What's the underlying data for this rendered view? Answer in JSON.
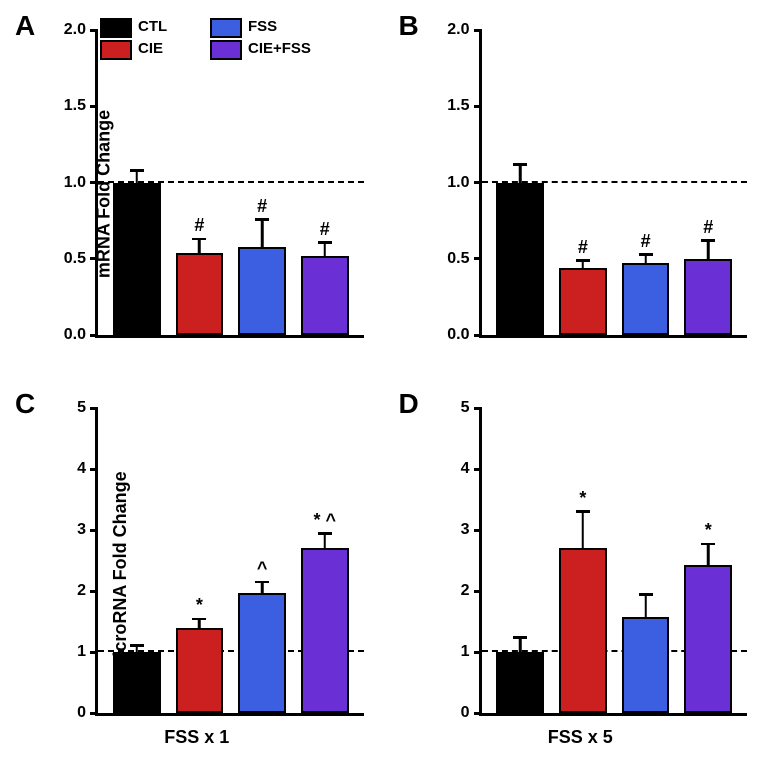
{
  "colors": {
    "CTL": "#000000",
    "CIE": "#cc1f1f",
    "FSS": "#3b5fe0",
    "CIEFSS": "#6b2fd6"
  },
  "legend": {
    "items": [
      {
        "key": "CTL",
        "label": "CTL"
      },
      {
        "key": "CIE",
        "label": "CIE"
      },
      {
        "key": "FSS",
        "label": "FSS"
      },
      {
        "key": "CIEFSS",
        "label": "CIE+FSS"
      }
    ]
  },
  "panels": {
    "A": {
      "label": "A",
      "ylabel": "mRNA Fold Change",
      "ylim": [
        0,
        2.0
      ],
      "yticks": [
        0.0,
        0.5,
        1.0,
        1.5,
        2.0
      ],
      "ytick_labels": [
        "0.0",
        "0.5",
        "1.0",
        "1.5",
        "2.0"
      ],
      "ref": 1.0,
      "bars": [
        {
          "key": "CTL",
          "value": 1.0,
          "err": 0.07,
          "annot": ""
        },
        {
          "key": "CIE",
          "value": 0.54,
          "err": 0.08,
          "annot": "#"
        },
        {
          "key": "FSS",
          "value": 0.58,
          "err": 0.17,
          "annot": "#"
        },
        {
          "key": "CIEFSS",
          "value": 0.52,
          "err": 0.08,
          "annot": "#"
        }
      ],
      "show_ylabel": true,
      "show_legend": true
    },
    "B": {
      "label": "B",
      "ylabel": "mRNA Fold Change",
      "ylim": [
        0,
        2.0
      ],
      "yticks": [
        0.0,
        0.5,
        1.0,
        1.5,
        2.0
      ],
      "ytick_labels": [
        "0.0",
        "0.5",
        "1.0",
        "1.5",
        "2.0"
      ],
      "ref": 1.0,
      "bars": [
        {
          "key": "CTL",
          "value": 1.0,
          "err": 0.11,
          "annot": ""
        },
        {
          "key": "CIE",
          "value": 0.44,
          "err": 0.04,
          "annot": "#"
        },
        {
          "key": "FSS",
          "value": 0.47,
          "err": 0.05,
          "annot": "#"
        },
        {
          "key": "CIEFSS",
          "value": 0.5,
          "err": 0.11,
          "annot": "#"
        }
      ],
      "show_ylabel": false,
      "show_legend": false
    },
    "C": {
      "label": "C",
      "ylabel": "microRNA Fold Change",
      "ylim": [
        0,
        5
      ],
      "yticks": [
        0,
        1,
        2,
        3,
        4,
        5
      ],
      "ytick_labels": [
        "0",
        "1",
        "2",
        "3",
        "4",
        "5"
      ],
      "ref": 1.0,
      "bars": [
        {
          "key": "CTL",
          "value": 1.0,
          "err": 0.09,
          "annot": ""
        },
        {
          "key": "CIE",
          "value": 1.4,
          "err": 0.12,
          "annot": "*"
        },
        {
          "key": "FSS",
          "value": 1.97,
          "err": 0.16,
          "annot": "^"
        },
        {
          "key": "CIEFSS",
          "value": 2.7,
          "err": 0.22,
          "annot": "* ^"
        }
      ],
      "xlabel": "FSS x 1",
      "show_ylabel": true
    },
    "D": {
      "label": "D",
      "ylabel": "microRNA Fold Change",
      "ylim": [
        0,
        5
      ],
      "yticks": [
        0,
        1,
        2,
        3,
        4,
        5
      ],
      "ytick_labels": [
        "0",
        "1",
        "2",
        "3",
        "4",
        "5"
      ],
      "ref": 1.0,
      "bars": [
        {
          "key": "CTL",
          "value": 1.0,
          "err": 0.22,
          "annot": ""
        },
        {
          "key": "CIE",
          "value": 2.7,
          "err": 0.58,
          "annot": "*"
        },
        {
          "key": "FSS",
          "value": 1.58,
          "err": 0.34,
          "annot": ""
        },
        {
          "key": "CIEFSS",
          "value": 2.42,
          "err": 0.33,
          "annot": "*"
        }
      ],
      "xlabel": "FSS x 5",
      "show_ylabel": false
    }
  }
}
